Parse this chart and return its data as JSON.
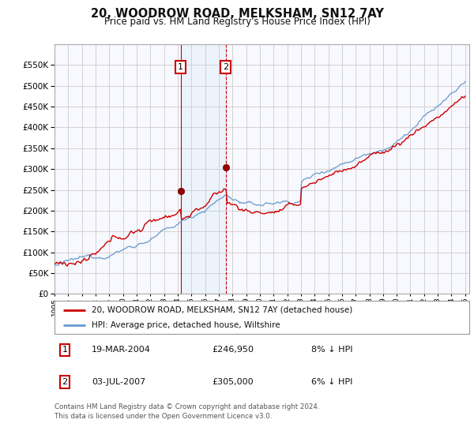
{
  "title": "20, WOODROW ROAD, MELKSHAM, SN12 7AY",
  "subtitle": "Price paid vs. HM Land Registry's House Price Index (HPI)",
  "red_label": "20, WOODROW ROAD, MELKSHAM, SN12 7AY (detached house)",
  "blue_label": "HPI: Average price, detached house, Wiltshire",
  "transaction1_date": "19-MAR-2004",
  "transaction1_price": 246950,
  "transaction1_note": "8% ↓ HPI",
  "transaction2_date": "03-JUL-2007",
  "transaction2_price": 305000,
  "transaction2_note": "6% ↓ HPI",
  "footnote": "Contains HM Land Registry data © Crown copyright and database right 2024.\nThis data is licensed under the Open Government Licence v3.0.",
  "ylim_min": 0,
  "ylim_max": 600000,
  "yticks": [
    0,
    50000,
    100000,
    150000,
    200000,
    250000,
    300000,
    350000,
    400000,
    450000,
    500000,
    550000
  ],
  "background_color": "#ffffff",
  "plot_bg_color": "#f8f8ff",
  "grid_color": "#cccccc",
  "red_color": "#cc0000",
  "blue_color": "#6699cc",
  "t1_year": 2004.21,
  "t2_year": 2007.5
}
